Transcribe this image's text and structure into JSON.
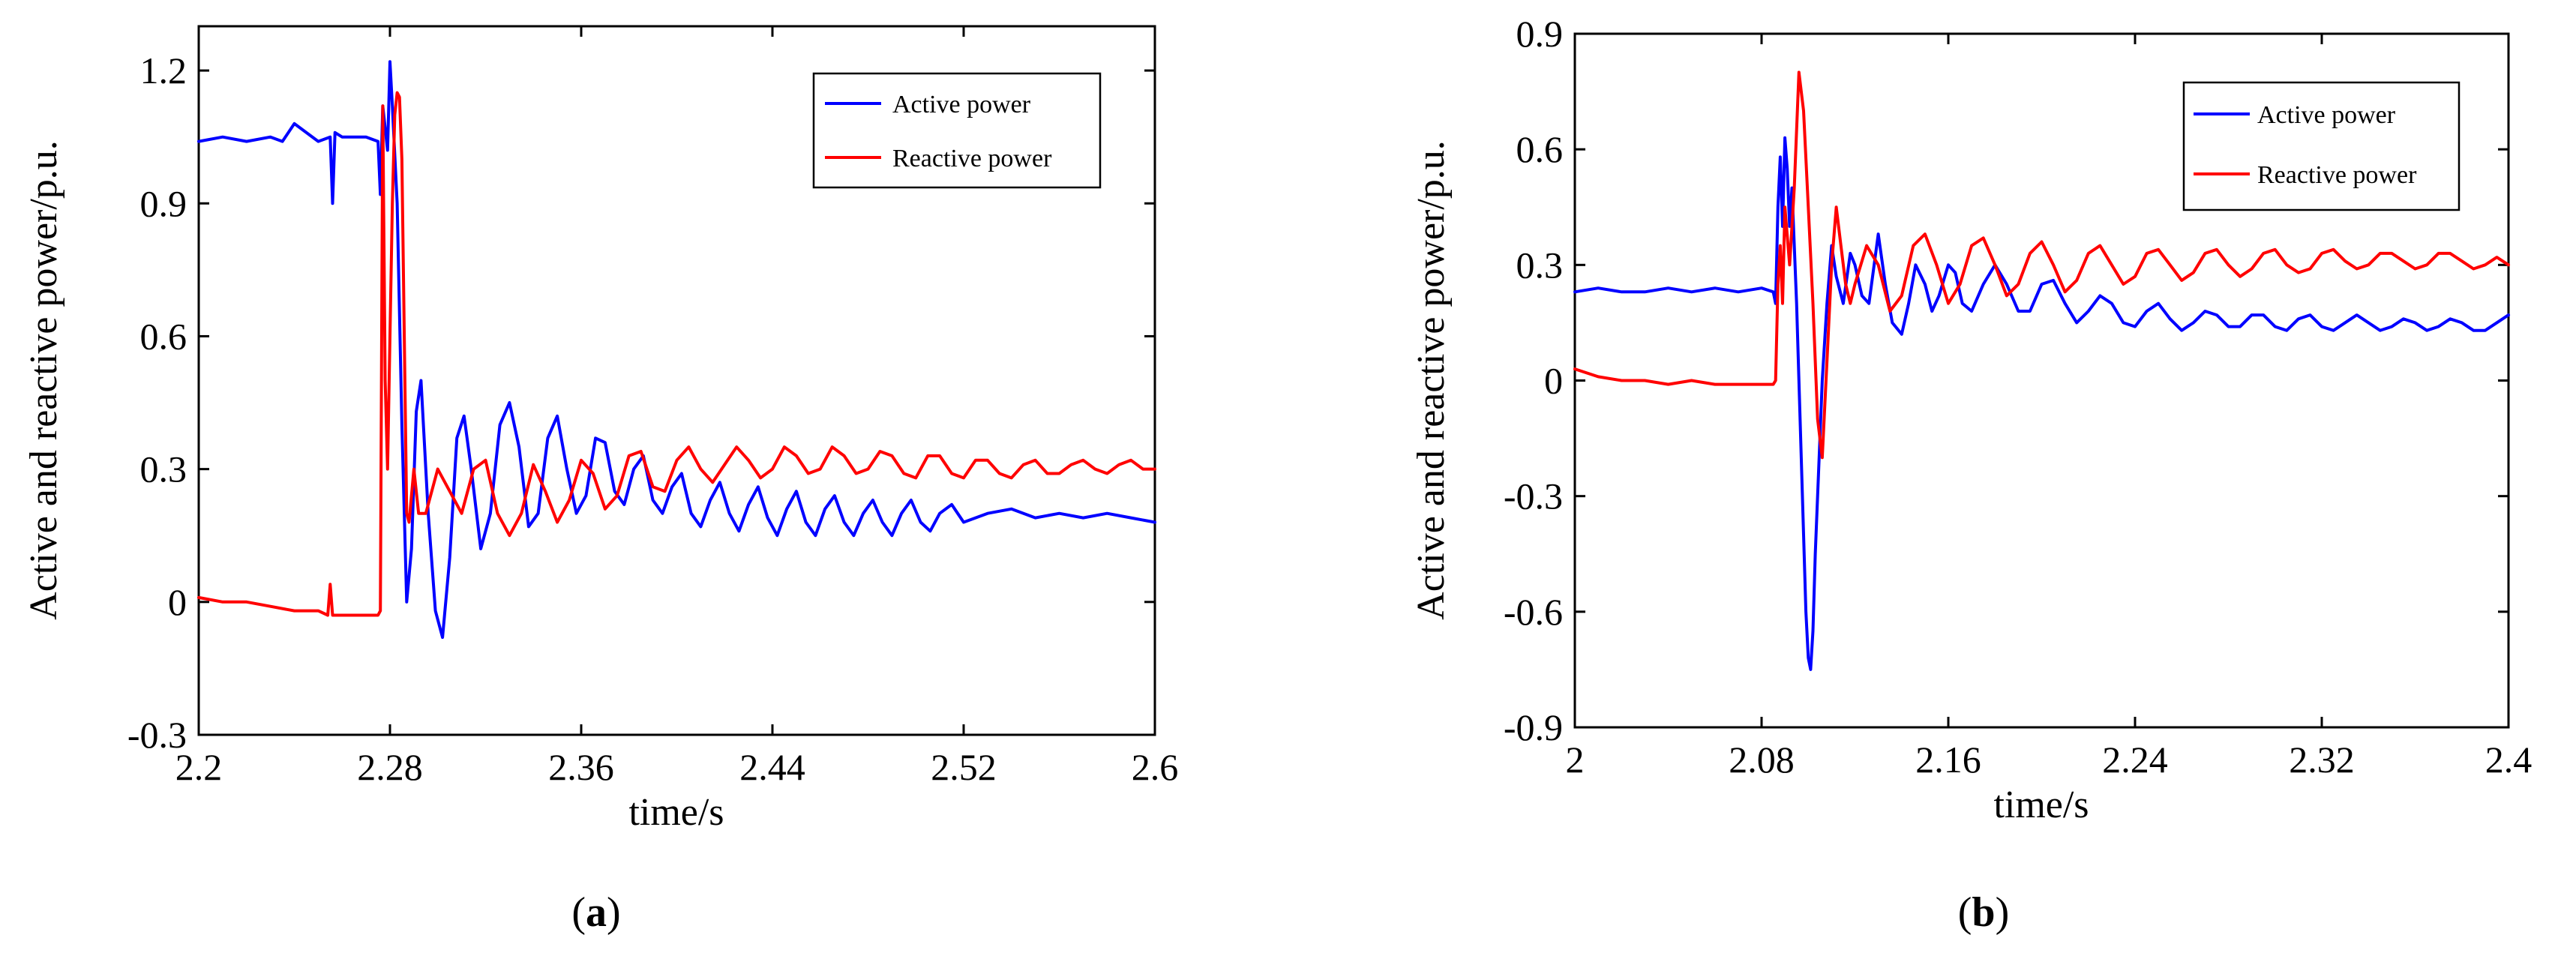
{
  "chart_data": [
    {
      "type": "line",
      "panel": "a",
      "caption_prefix": "(",
      "caption_letter": "a",
      "caption_suffix": ")",
      "title": "",
      "xlabel": "time/s",
      "ylabel": "Active and reactive power/p.u.",
      "xlim": [
        2.2,
        2.6
      ],
      "ylim": [
        -0.3,
        1.3
      ],
      "xticks": [
        2.2,
        2.28,
        2.36,
        2.44,
        2.52,
        2.6
      ],
      "xtick_labels": [
        "2.2",
        "2.28",
        "2.36",
        "2.44",
        "2.52",
        "2.6"
      ],
      "yticks": [
        -0.3,
        0,
        0.3,
        0.6,
        0.9,
        1.2
      ],
      "ytick_labels": [
        "-0.3",
        "0",
        "0.3",
        "0.6",
        "0.9",
        "1.2"
      ],
      "grid": false,
      "legend_position": "top-right",
      "series": [
        {
          "name": "Active power",
          "color": "#0000ff",
          "x": [
            2.2,
            2.21,
            2.22,
            2.23,
            2.235,
            2.24,
            2.25,
            2.255,
            2.256,
            2.257,
            2.26,
            2.27,
            2.275,
            2.276,
            2.277,
            2.279,
            2.28,
            2.281,
            2.283,
            2.285,
            2.287,
            2.289,
            2.291,
            2.293,
            2.296,
            2.299,
            2.302,
            2.305,
            2.308,
            2.311,
            2.314,
            2.318,
            2.322,
            2.326,
            2.33,
            2.334,
            2.338,
            2.342,
            2.346,
            2.35,
            2.354,
            2.358,
            2.362,
            2.366,
            2.37,
            2.374,
            2.378,
            2.382,
            2.386,
            2.39,
            2.394,
            2.398,
            2.402,
            2.406,
            2.41,
            2.414,
            2.418,
            2.422,
            2.426,
            2.43,
            2.434,
            2.438,
            2.442,
            2.446,
            2.45,
            2.454,
            2.458,
            2.462,
            2.466,
            2.47,
            2.474,
            2.478,
            2.482,
            2.486,
            2.49,
            2.494,
            2.498,
            2.502,
            2.506,
            2.51,
            2.515,
            2.52,
            2.53,
            2.54,
            2.55,
            2.56,
            2.57,
            2.58,
            2.59,
            2.6
          ],
          "y": [
            1.04,
            1.05,
            1.04,
            1.05,
            1.04,
            1.08,
            1.04,
            1.05,
            0.9,
            1.06,
            1.05,
            1.05,
            1.04,
            0.92,
            1.12,
            1.02,
            1.22,
            1.12,
            0.9,
            0.4,
            0.0,
            0.12,
            0.43,
            0.5,
            0.2,
            -0.02,
            -0.08,
            0.1,
            0.37,
            0.42,
            0.3,
            0.12,
            0.2,
            0.4,
            0.45,
            0.35,
            0.17,
            0.2,
            0.37,
            0.42,
            0.3,
            0.2,
            0.24,
            0.37,
            0.36,
            0.25,
            0.22,
            0.3,
            0.33,
            0.23,
            0.2,
            0.26,
            0.29,
            0.2,
            0.17,
            0.23,
            0.27,
            0.2,
            0.16,
            0.22,
            0.26,
            0.19,
            0.15,
            0.21,
            0.25,
            0.18,
            0.15,
            0.21,
            0.24,
            0.18,
            0.15,
            0.2,
            0.23,
            0.18,
            0.15,
            0.2,
            0.23,
            0.18,
            0.16,
            0.2,
            0.22,
            0.18,
            0.2,
            0.21,
            0.19,
            0.2,
            0.19,
            0.2,
            0.19,
            0.18
          ]
        },
        {
          "name": "Reactive power",
          "color": "#ff0000",
          "x": [
            2.2,
            2.21,
            2.22,
            2.23,
            2.24,
            2.25,
            2.254,
            2.255,
            2.256,
            2.26,
            2.27,
            2.275,
            2.276,
            2.277,
            2.278,
            2.279,
            2.28,
            2.281,
            2.282,
            2.283,
            2.284,
            2.285,
            2.286,
            2.287,
            2.288,
            2.29,
            2.292,
            2.295,
            2.3,
            2.305,
            2.31,
            2.315,
            2.32,
            2.325,
            2.33,
            2.335,
            2.34,
            2.345,
            2.35,
            2.355,
            2.36,
            2.365,
            2.37,
            2.375,
            2.38,
            2.385,
            2.39,
            2.395,
            2.4,
            2.405,
            2.41,
            2.415,
            2.42,
            2.425,
            2.43,
            2.435,
            2.44,
            2.445,
            2.45,
            2.455,
            2.46,
            2.465,
            2.47,
            2.475,
            2.48,
            2.485,
            2.49,
            2.495,
            2.5,
            2.505,
            2.51,
            2.515,
            2.52,
            2.525,
            2.53,
            2.535,
            2.54,
            2.545,
            2.55,
            2.555,
            2.56,
            2.565,
            2.57,
            2.575,
            2.58,
            2.585,
            2.59,
            2.595,
            2.6
          ],
          "y": [
            0.01,
            0.0,
            0.0,
            -0.01,
            -0.02,
            -0.02,
            -0.03,
            0.04,
            -0.03,
            -0.03,
            -0.03,
            -0.03,
            -0.02,
            1.12,
            0.5,
            0.3,
            0.6,
            0.9,
            1.1,
            1.15,
            1.14,
            1.0,
            0.6,
            0.2,
            0.18,
            0.3,
            0.2,
            0.2,
            0.3,
            0.25,
            0.2,
            0.3,
            0.32,
            0.2,
            0.15,
            0.2,
            0.31,
            0.25,
            0.18,
            0.23,
            0.32,
            0.29,
            0.21,
            0.24,
            0.33,
            0.34,
            0.26,
            0.25,
            0.32,
            0.35,
            0.3,
            0.27,
            0.31,
            0.35,
            0.32,
            0.28,
            0.3,
            0.35,
            0.33,
            0.29,
            0.3,
            0.35,
            0.33,
            0.29,
            0.3,
            0.34,
            0.33,
            0.29,
            0.28,
            0.33,
            0.33,
            0.29,
            0.28,
            0.32,
            0.32,
            0.29,
            0.28,
            0.31,
            0.32,
            0.29,
            0.29,
            0.31,
            0.32,
            0.3,
            0.29,
            0.31,
            0.32,
            0.3,
            0.3
          ]
        }
      ]
    },
    {
      "type": "line",
      "panel": "b",
      "caption_prefix": "(",
      "caption_letter": "b",
      "caption_suffix": ")",
      "title": "",
      "xlabel": "time/s",
      "ylabel": "Active and reactive power/p.u.",
      "xlim": [
        2.0,
        2.4
      ],
      "ylim": [
        -0.9,
        0.9
      ],
      "xticks": [
        2.0,
        2.08,
        2.16,
        2.24,
        2.32,
        2.4
      ],
      "xtick_labels": [
        "2",
        "2.08",
        "2.16",
        "2.24",
        "2.32",
        "2.4"
      ],
      "yticks": [
        -0.9,
        -0.6,
        -0.3,
        0,
        0.3,
        0.6,
        0.9
      ],
      "ytick_labels": [
        "-0.9",
        "-0.6",
        "-0.3",
        "0",
        "0.3",
        "0.6",
        "0.9"
      ],
      "grid": false,
      "legend_position": "top-right",
      "series": [
        {
          "name": "Active power",
          "color": "#0000ff",
          "x": [
            2.0,
            2.01,
            2.02,
            2.03,
            2.04,
            2.05,
            2.06,
            2.07,
            2.08,
            2.085,
            2.086,
            2.087,
            2.088,
            2.089,
            2.09,
            2.091,
            2.092,
            2.093,
            2.094,
            2.095,
            2.096,
            2.097,
            2.098,
            2.099,
            2.1,
            2.101,
            2.102,
            2.103,
            2.104,
            2.105,
            2.106,
            2.108,
            2.11,
            2.112,
            2.115,
            2.118,
            2.12,
            2.123,
            2.126,
            2.13,
            2.133,
            2.136,
            2.14,
            2.143,
            2.146,
            2.15,
            2.153,
            2.156,
            2.16,
            2.163,
            2.166,
            2.17,
            2.175,
            2.18,
            2.185,
            2.19,
            2.195,
            2.2,
            2.205,
            2.21,
            2.215,
            2.22,
            2.225,
            2.23,
            2.235,
            2.24,
            2.245,
            2.25,
            2.255,
            2.26,
            2.265,
            2.27,
            2.275,
            2.28,
            2.285,
            2.29,
            2.295,
            2.3,
            2.305,
            2.31,
            2.315,
            2.32,
            2.325,
            2.33,
            2.335,
            2.34,
            2.345,
            2.35,
            2.355,
            2.36,
            2.365,
            2.37,
            2.375,
            2.38,
            2.385,
            2.39,
            2.395,
            2.4
          ],
          "y": [
            0.23,
            0.24,
            0.23,
            0.23,
            0.24,
            0.23,
            0.24,
            0.23,
            0.24,
            0.23,
            0.2,
            0.45,
            0.58,
            0.4,
            0.63,
            0.55,
            0.4,
            0.5,
            0.35,
            0.2,
            0.0,
            -0.2,
            -0.4,
            -0.6,
            -0.72,
            -0.75,
            -0.65,
            -0.45,
            -0.3,
            -0.15,
            0.0,
            0.2,
            0.35,
            0.27,
            0.2,
            0.33,
            0.3,
            0.22,
            0.2,
            0.38,
            0.25,
            0.15,
            0.12,
            0.2,
            0.3,
            0.25,
            0.18,
            0.22,
            0.3,
            0.28,
            0.2,
            0.18,
            0.25,
            0.3,
            0.25,
            0.18,
            0.18,
            0.25,
            0.26,
            0.2,
            0.15,
            0.18,
            0.22,
            0.2,
            0.15,
            0.14,
            0.18,
            0.2,
            0.16,
            0.13,
            0.15,
            0.18,
            0.17,
            0.14,
            0.14,
            0.17,
            0.17,
            0.14,
            0.13,
            0.16,
            0.17,
            0.14,
            0.13,
            0.15,
            0.17,
            0.15,
            0.13,
            0.14,
            0.16,
            0.15,
            0.13,
            0.14,
            0.16,
            0.15,
            0.13,
            0.13,
            0.15,
            0.17
          ]
        },
        {
          "name": "Reactive power",
          "color": "#ff0000",
          "x": [
            2.0,
            2.01,
            2.02,
            2.03,
            2.04,
            2.05,
            2.06,
            2.07,
            2.08,
            2.085,
            2.086,
            2.087,
            2.088,
            2.089,
            2.09,
            2.092,
            2.094,
            2.096,
            2.098,
            2.1,
            2.102,
            2.104,
            2.106,
            2.108,
            2.11,
            2.112,
            2.114,
            2.116,
            2.118,
            2.12,
            2.125,
            2.13,
            2.135,
            2.14,
            2.145,
            2.15,
            2.155,
            2.16,
            2.165,
            2.17,
            2.175,
            2.18,
            2.185,
            2.19,
            2.195,
            2.2,
            2.205,
            2.21,
            2.215,
            2.22,
            2.225,
            2.23,
            2.235,
            2.24,
            2.245,
            2.25,
            2.255,
            2.26,
            2.265,
            2.27,
            2.275,
            2.28,
            2.285,
            2.29,
            2.295,
            2.3,
            2.305,
            2.31,
            2.315,
            2.32,
            2.325,
            2.33,
            2.335,
            2.34,
            2.345,
            2.35,
            2.355,
            2.36,
            2.365,
            2.37,
            2.375,
            2.38,
            2.385,
            2.39,
            2.395,
            2.4
          ],
          "y": [
            0.03,
            0.01,
            0.0,
            0.0,
            -0.01,
            0.0,
            -0.01,
            -0.01,
            -0.01,
            -0.01,
            0.0,
            0.25,
            0.35,
            0.2,
            0.45,
            0.3,
            0.5,
            0.8,
            0.7,
            0.45,
            0.2,
            -0.1,
            -0.2,
            0.05,
            0.3,
            0.45,
            0.35,
            0.25,
            0.2,
            0.25,
            0.35,
            0.3,
            0.18,
            0.22,
            0.35,
            0.38,
            0.3,
            0.2,
            0.25,
            0.35,
            0.37,
            0.3,
            0.22,
            0.25,
            0.33,
            0.36,
            0.3,
            0.23,
            0.26,
            0.33,
            0.35,
            0.3,
            0.25,
            0.27,
            0.33,
            0.34,
            0.3,
            0.26,
            0.28,
            0.33,
            0.34,
            0.3,
            0.27,
            0.29,
            0.33,
            0.34,
            0.3,
            0.28,
            0.29,
            0.33,
            0.34,
            0.31,
            0.29,
            0.3,
            0.33,
            0.33,
            0.31,
            0.29,
            0.3,
            0.33,
            0.33,
            0.31,
            0.29,
            0.3,
            0.32,
            0.3
          ]
        }
      ]
    }
  ]
}
